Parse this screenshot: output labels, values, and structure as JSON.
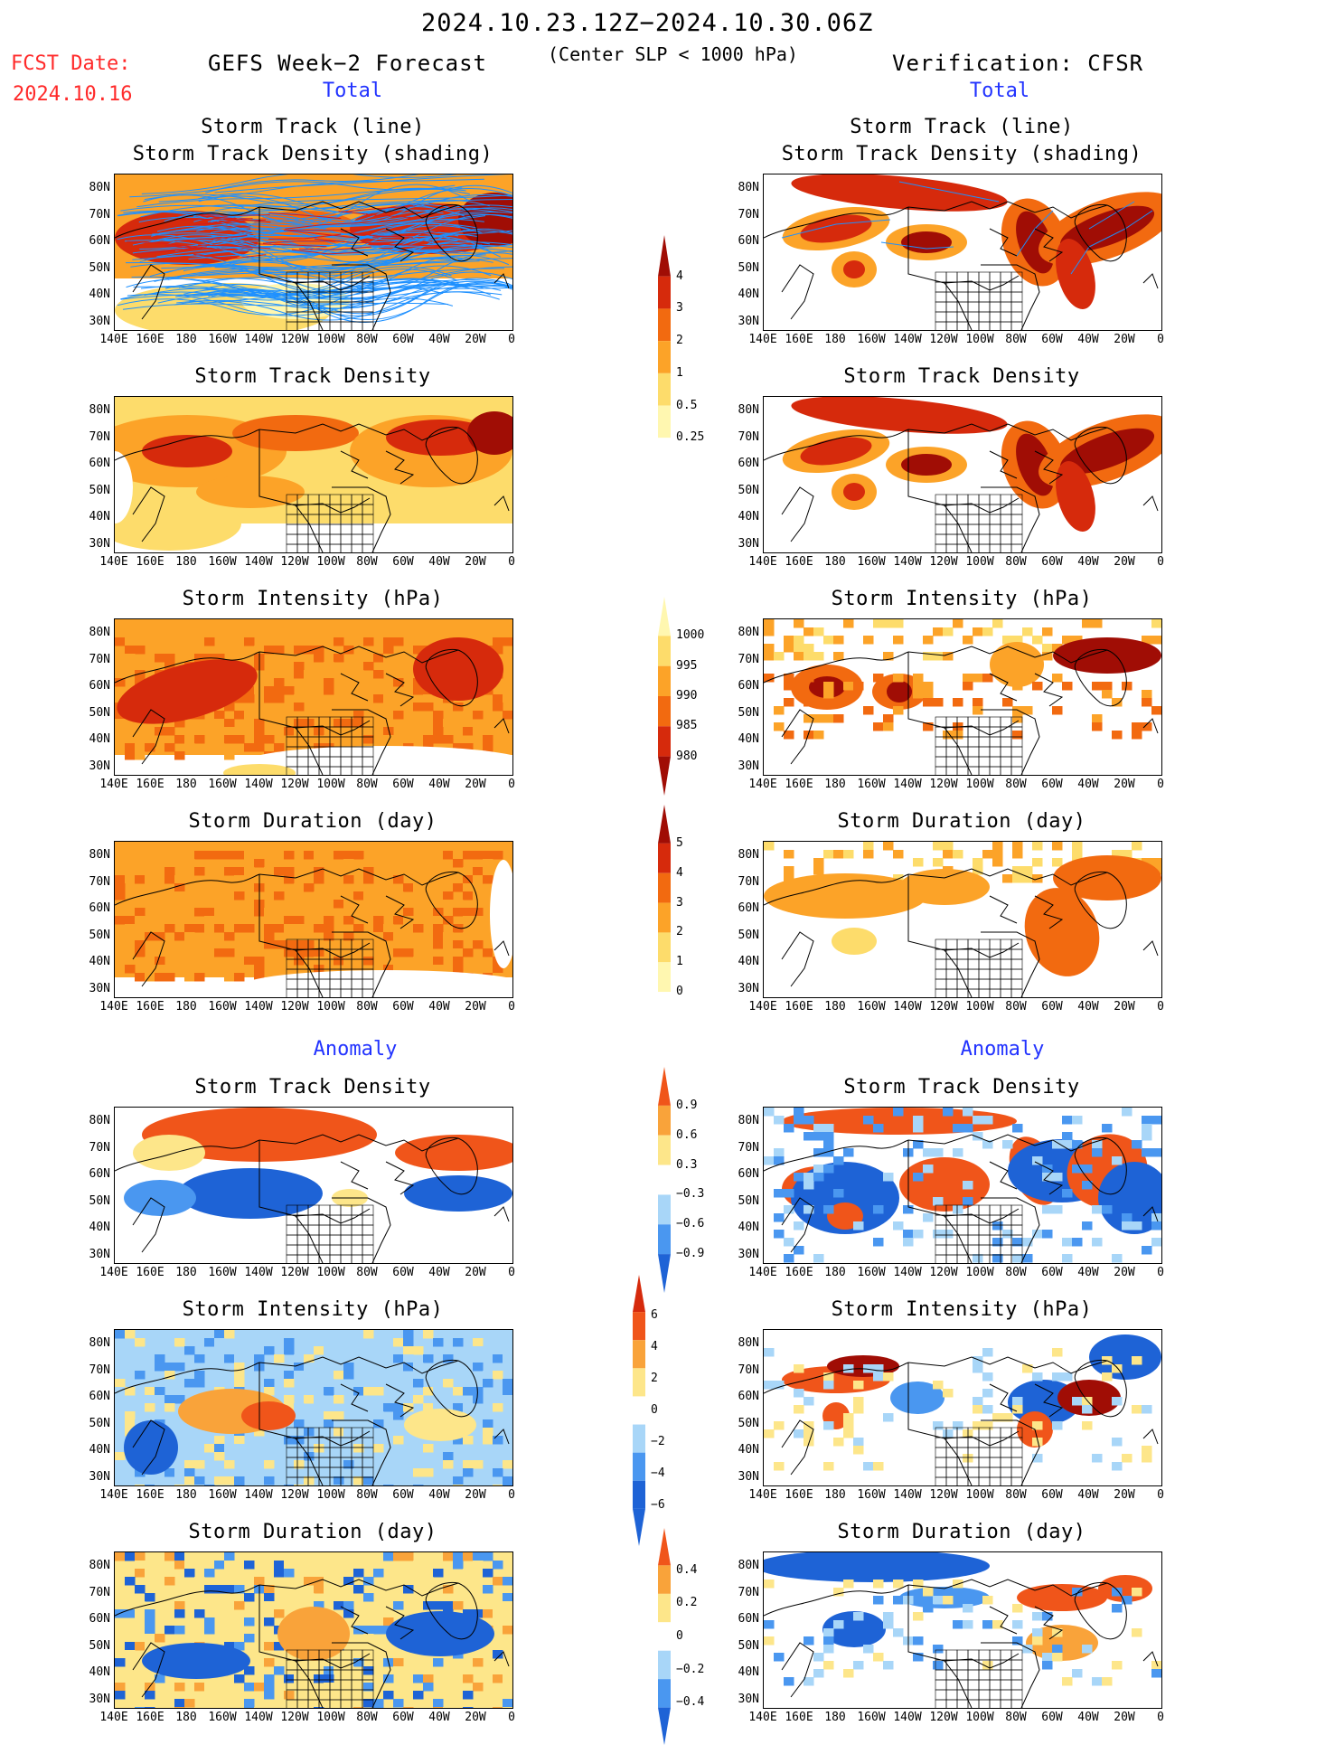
{
  "header": {
    "date_range": "2024.10.23.12Z−2024.10.30.06Z",
    "subtitle": "(Center SLP < 1000 hPa)",
    "fcst_label": "FCST Date:",
    "fcst_date": "2024.10.16",
    "left_title": "GEFS Week−2 Forecast",
    "right_title": "Verification: CFSR"
  },
  "section_labels": {
    "total": "Total",
    "anomaly": "Anomaly"
  },
  "panel_titles": {
    "track_line": "Storm Track (line)",
    "track_density_shading": "Storm Track Density (shading)",
    "track_density": "Storm Track Density",
    "intensity": "Storm Intensity (hPa)",
    "duration": "Storm Duration (day)"
  },
  "axes": {
    "lat_labels": [
      "80N",
      "70N",
      "60N",
      "50N",
      "40N",
      "30N"
    ],
    "lon_labels": [
      "140E",
      "160E",
      "180",
      "160W",
      "140W",
      "120W",
      "100W",
      "80W",
      "60W",
      "40W",
      "20W",
      "0"
    ]
  },
  "colorbars": {
    "density": [
      "4",
      "3",
      "2",
      "1",
      "0.5",
      "0.25"
    ],
    "intensity": [
      "1000",
      "995",
      "990",
      "985",
      "980"
    ],
    "duration": [
      "5",
      "4",
      "3",
      "2",
      "1",
      "0"
    ],
    "density_anom": [
      "0.9",
      "0.6",
      "0.3",
      "−0.3",
      "−0.6",
      "−0.9"
    ],
    "intensity_anom": [
      "6",
      "4",
      "2",
      "0",
      "−2",
      "−4",
      "−6"
    ],
    "duration_anom": [
      "0.4",
      "0.2",
      "0",
      "−0.2",
      "−0.4"
    ]
  },
  "colors": {
    "warm": [
      "#fff7b0",
      "#fddc6b",
      "#fca328",
      "#f26a10",
      "#d62a0c",
      "#a00d05"
    ],
    "anom": [
      "#1e63d6",
      "#4a97f0",
      "#a8d6f8",
      "#ffffff",
      "#fde68a",
      "#f9a33a",
      "#f0551a"
    ],
    "track_line": "#1e90ff",
    "land_outline": "#000000"
  }
}
